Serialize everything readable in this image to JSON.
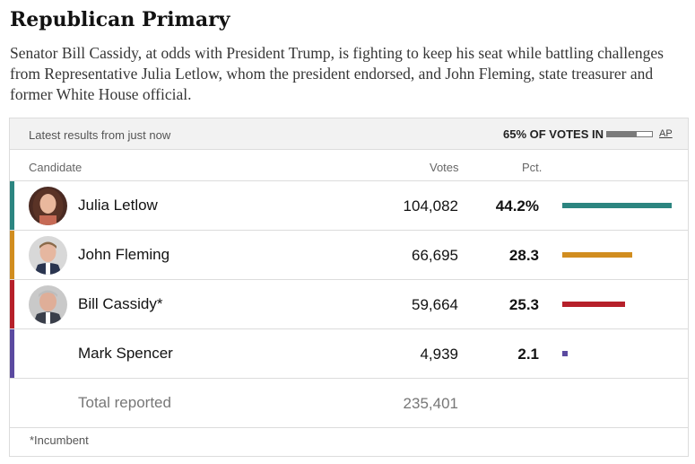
{
  "title": "Republican Primary",
  "dek": "Senator Bill Cassidy, at odds with President Trump, is fighting to keep his seat while battling challenges from Representative Julia Letlow, whom the president endorsed, and John Fleming, state treasurer and former White House official.",
  "header": {
    "latest": "Latest results from just now",
    "votes_in": "65% OF VOTES IN",
    "votes_in_fraction": 0.65,
    "source": "AP"
  },
  "columns": {
    "candidate": "Candidate",
    "votes": "Votes",
    "pct": "Pct."
  },
  "candidates": [
    {
      "name": "Julia Letlow",
      "votes": "104,082",
      "pct": "44.2%",
      "pct_value": 44.2,
      "color": "#2c8580",
      "photo": "julia-letlow-photo"
    },
    {
      "name": "John Fleming",
      "votes": "66,695",
      "pct": "28.3",
      "pct_value": 28.3,
      "color": "#d18d1f",
      "photo": "john-fleming-photo"
    },
    {
      "name": "Bill Cassidy*",
      "votes": "59,664",
      "pct": "25.3",
      "pct_value": 25.3,
      "color": "#b6202a",
      "photo": "bill-cassidy-photo"
    },
    {
      "name": "Mark Spencer",
      "votes": "4,939",
      "pct": "2.1",
      "pct_value": 2.1,
      "color": "#5b4aa0",
      "photo": ""
    }
  ],
  "total": {
    "label": "Total reported",
    "votes": "235,401"
  },
  "footnote": "*Incumbent"
}
